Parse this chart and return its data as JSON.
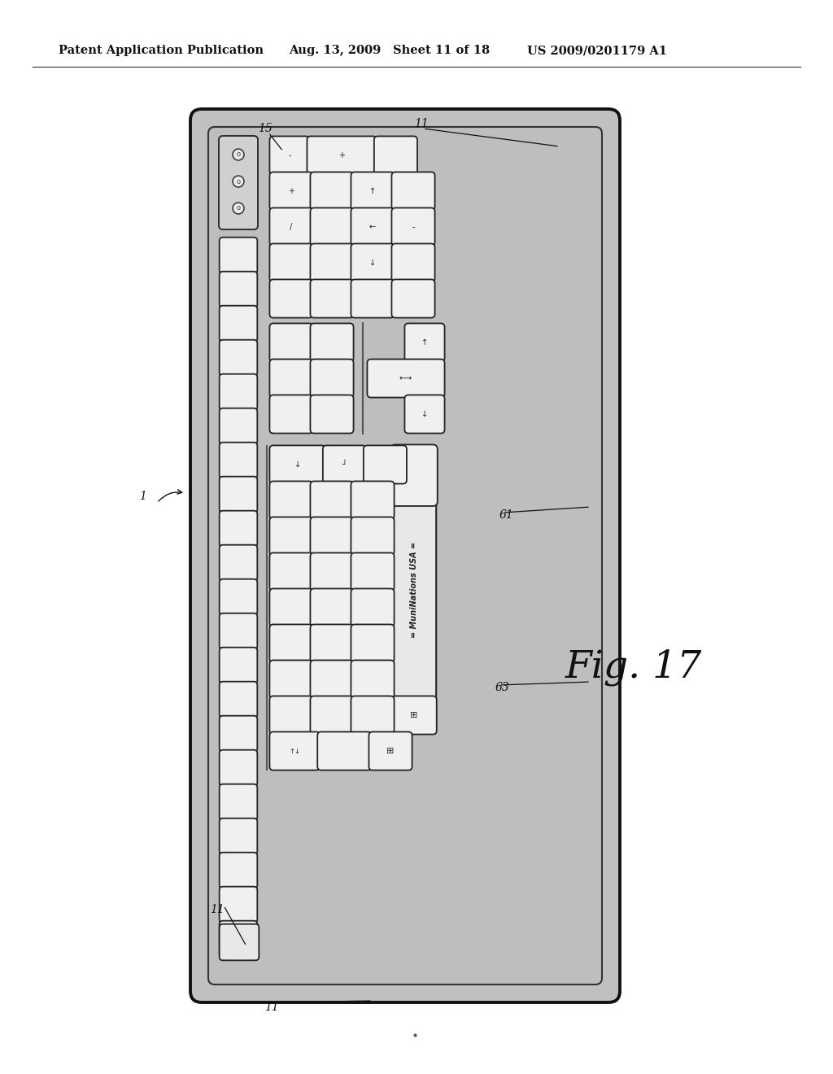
{
  "bg_color": "#ffffff",
  "header_text": "Patent Application Publication",
  "header_date": "Aug. 13, 2009",
  "header_sheet": "Sheet 11 of 18",
  "header_patent": "US 2009/0201179 A1",
  "fig_label": "Fig. 17",
  "keyboard_body_color": "#c0c0c0",
  "keyboard_inner_color": "#c8c8c8",
  "key_fc": "#f0f0f0",
  "key_ec": "#222222",
  "logo_strip_text": "= MuniNations USA =",
  "ref_15_text": "15",
  "ref_11_text": "11",
  "ref_61_text": "61",
  "ref_63_text": "63",
  "ref_1_text": "1"
}
